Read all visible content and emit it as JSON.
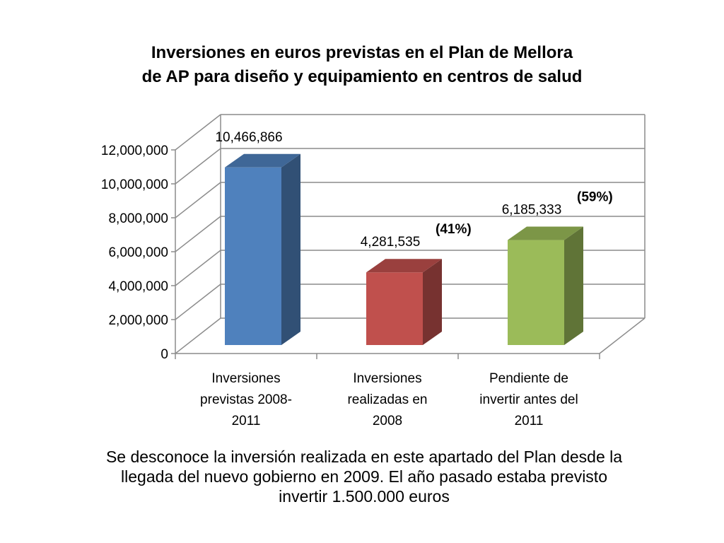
{
  "chart_data": {
    "type": "bar",
    "title_lines": [
      "Inversiones en euros previstas en el Plan de Mellora",
      "de AP para diseño y equipamiento en centros de salud"
    ],
    "categories": [
      [
        "Inversiones",
        "previstas 2008-",
        "2011"
      ],
      [
        "Inversiones",
        "realizadas en",
        "2008"
      ],
      [
        "Pendiente de",
        "invertir antes del",
        "2011"
      ]
    ],
    "values": [
      10466866,
      4281535,
      6185333
    ],
    "value_labels": [
      "10,466,866",
      "4,281,535",
      "6,185,333"
    ],
    "percent_labels": [
      "",
      "(41%)",
      "(59%)"
    ],
    "colors": [
      "#4F81BD",
      "#C0504D",
      "#9BBB59"
    ],
    "ylim": [
      0,
      12000000
    ],
    "yticks": [
      "0",
      "2,000,000",
      "4,000,000",
      "6,000,000",
      "8,000,000",
      "10,000,000",
      "12,000,000"
    ],
    "grid": true,
    "xlabel": "",
    "ylabel": ""
  },
  "caption_lines": [
    "Se desconoce la inversión realizada en este apartado del Plan desde la",
    "llegada del nuevo gobierno en 2009. El año pasado estaba previsto",
    "invertir  1.500.000 euros"
  ]
}
